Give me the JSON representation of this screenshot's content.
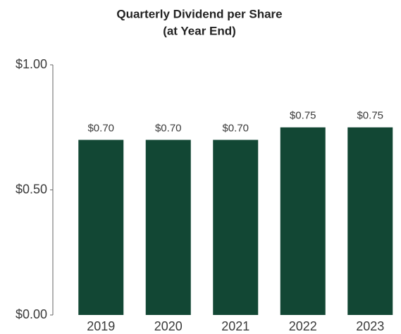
{
  "chart_data": {
    "type": "bar",
    "title": [
      "Quarterly Dividend per Share",
      "(at Year End)"
    ],
    "categories": [
      "2019",
      "2020",
      "2021",
      "2022",
      "2023"
    ],
    "values": [
      0.7,
      0.7,
      0.7,
      0.75,
      0.75
    ],
    "value_labels": [
      "$0.70",
      "$0.70",
      "$0.70",
      "$0.75",
      "$0.75"
    ],
    "color": "#124734",
    "ylim": [
      0,
      1
    ],
    "yticks": [
      {
        "value": 0,
        "label": "$0.00"
      },
      {
        "value": 0.5,
        "label": "$0.50"
      },
      {
        "value": 1,
        "label": "$1.00"
      }
    ]
  }
}
